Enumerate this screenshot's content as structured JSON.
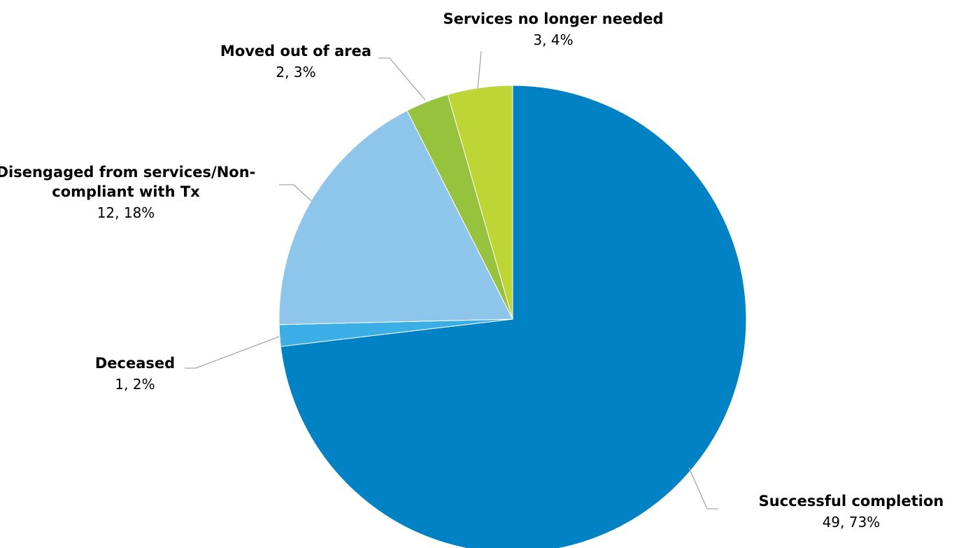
{
  "chart_data": {
    "type": "pie",
    "title": "",
    "slices": [
      {
        "name": "Successful completion",
        "value": 49,
        "percent": "73%",
        "color": "#0082C4"
      },
      {
        "name": "Deceased",
        "value": 1,
        "percent": "2%",
        "color": "#3AAEE5"
      },
      {
        "name": "Disengaged from services/Non-compliant with Tx",
        "value": 12,
        "percent": "18%",
        "color": "#8DC6EA"
      },
      {
        "name": "Moved out of area",
        "value": 2,
        "percent": "3%",
        "color": "#97C23D"
      },
      {
        "name": "Services no longer needed",
        "value": 3,
        "percent": "4%",
        "color": "#BDD535"
      }
    ],
    "labels": [
      {
        "lines": [
          "Successful completion"
        ],
        "value_text": "49, 73%"
      },
      {
        "lines": [
          "Deceased"
        ],
        "value_text": "1, 2%"
      },
      {
        "lines": [
          "Disengaged from services/Non-",
          "compliant with Tx"
        ],
        "value_text": "12, 18%"
      },
      {
        "lines": [
          "Moved out of area"
        ],
        "value_text": "2, 3%"
      },
      {
        "lines": [
          "Services no longer needed"
        ],
        "value_text": "3, 4%"
      }
    ],
    "legend": "none",
    "start_angle_deg": 0,
    "direction": "clockwise"
  }
}
